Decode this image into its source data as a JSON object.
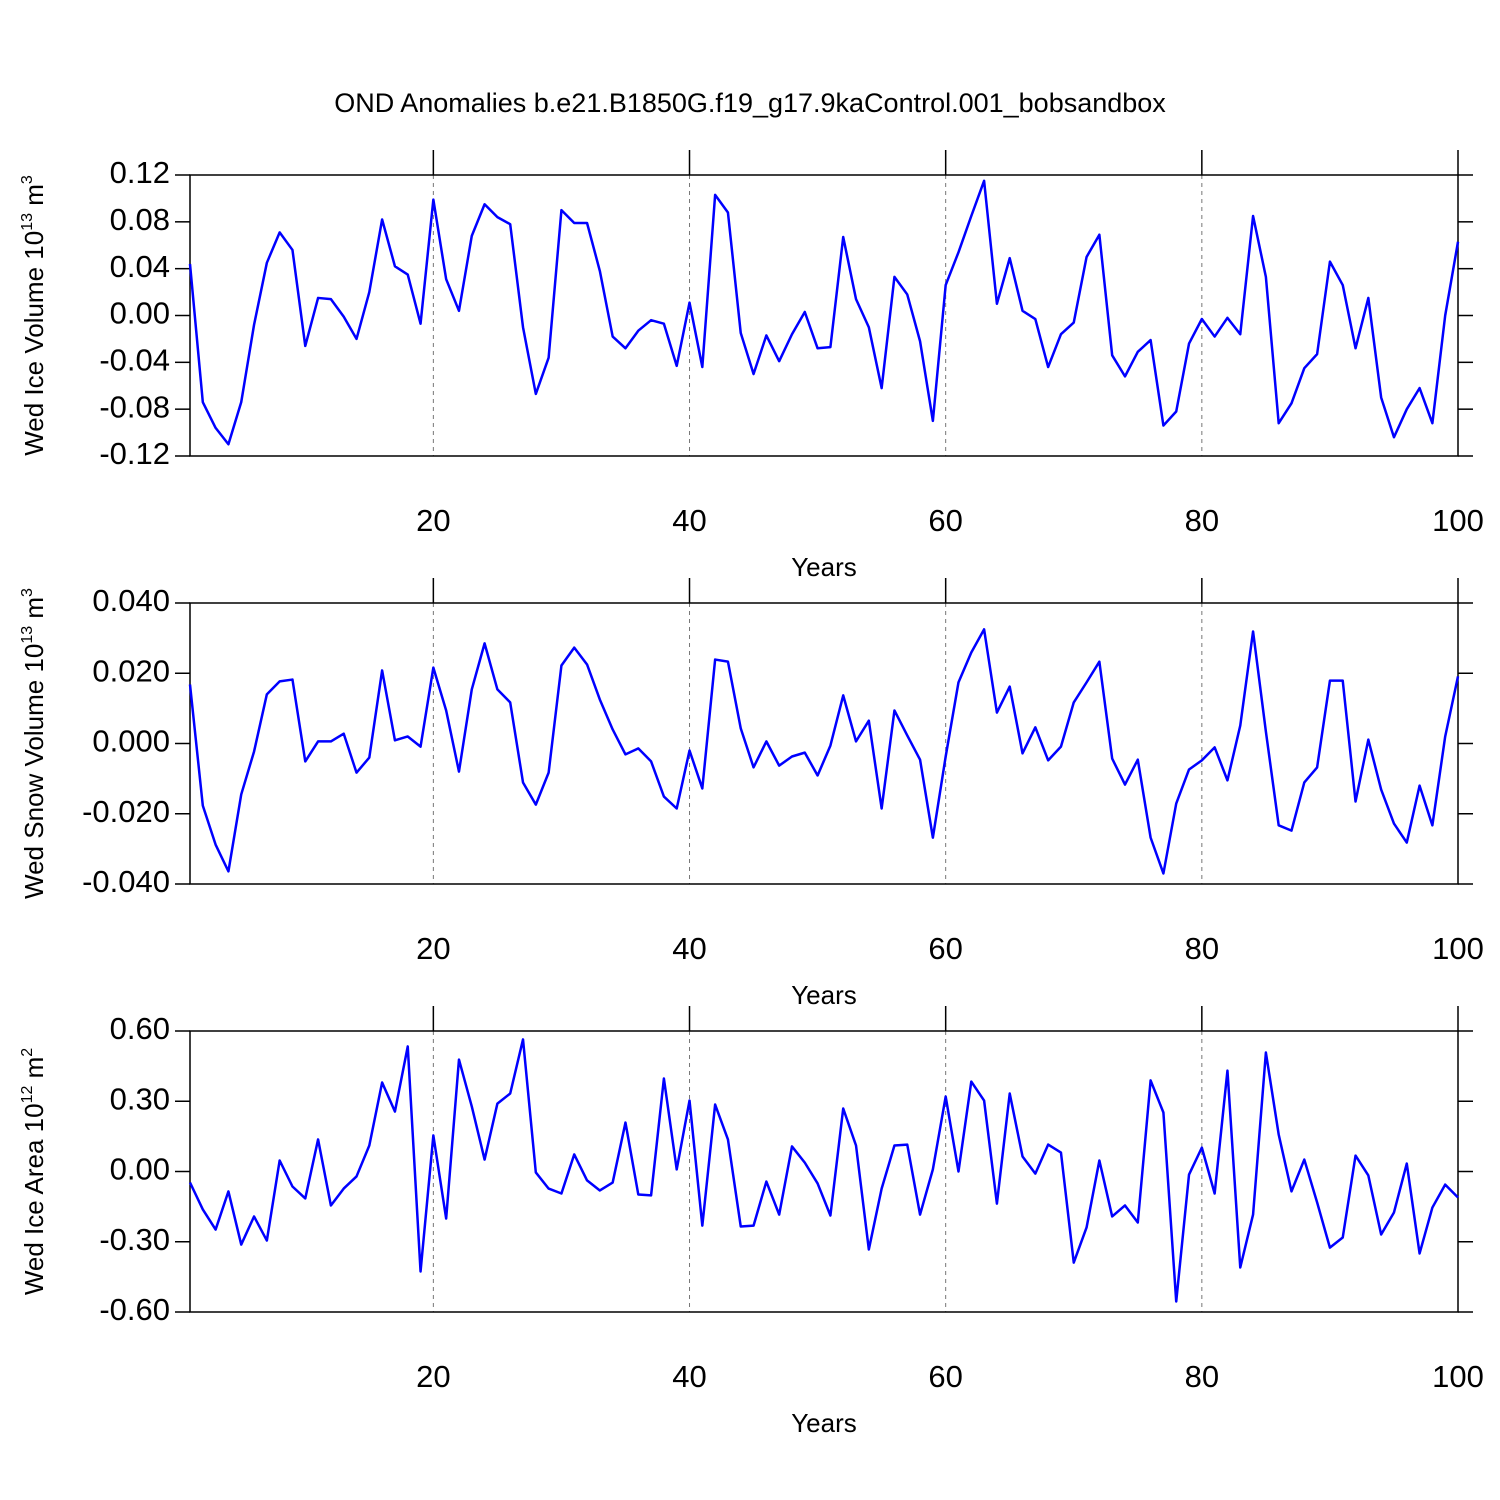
{
  "title": "OND Anomalies b.e21.B1850G.f19_g17.9kaControl.001_bobsandbox",
  "chart_data": [
    {
      "type": "line",
      "xlabel": "Years",
      "ylabel": [
        "Wed Ice Volume 10",
        "13",
        " m",
        "3"
      ],
      "color": "#0000ff",
      "grid": true,
      "xlim": [
        1,
        100
      ],
      "xticks": [
        20,
        40,
        60,
        80,
        100
      ],
      "ylim": [
        -0.12,
        0.12
      ],
      "yticks": [
        {
          "value": -0.12,
          "label": "-0.12"
        },
        {
          "value": -0.08,
          "label": "-0.08"
        },
        {
          "value": -0.04,
          "label": "-0.04"
        },
        {
          "value": 0,
          "label": "0.00"
        },
        {
          "value": 0.04,
          "label": "0.04"
        },
        {
          "value": 0.08,
          "label": "0.08"
        },
        {
          "value": 0.12,
          "label": "0.12"
        }
      ],
      "x": [
        1,
        2,
        3,
        4,
        5,
        6,
        7,
        8,
        9,
        10,
        11,
        12,
        13,
        14,
        15,
        16,
        17,
        18,
        19,
        20,
        21,
        22,
        23,
        24,
        25,
        26,
        27,
        28,
        29,
        30,
        31,
        32,
        33,
        34,
        35,
        36,
        37,
        38,
        39,
        40,
        41,
        42,
        43,
        44,
        45,
        46,
        47,
        48,
        49,
        50,
        51,
        52,
        53,
        54,
        55,
        56,
        57,
        58,
        59,
        60,
        61,
        62,
        63,
        64,
        65,
        66,
        67,
        68,
        69,
        70,
        71,
        72,
        73,
        74,
        75,
        76,
        77,
        78,
        79,
        80,
        81,
        82,
        83,
        84,
        85,
        86,
        87,
        88,
        89,
        90,
        91,
        92,
        93,
        94,
        95,
        96,
        97,
        98,
        99,
        100
      ],
      "values": [
        0.044,
        -0.074,
        -0.096,
        -0.11,
        -0.074,
        -0.008,
        0.045,
        0.071,
        0.056,
        -0.026,
        0.015,
        0.014,
        -0.001,
        -0.02,
        0.02,
        0.082,
        0.042,
        0.035,
        -0.007,
        0.099,
        0.031,
        0.004,
        0.068,
        0.095,
        0.084,
        0.078,
        -0.01,
        -0.067,
        -0.036,
        0.09,
        0.079,
        0.079,
        0.038,
        -0.018,
        -0.028,
        -0.013,
        -0.004,
        -0.007,
        -0.043,
        0.011,
        -0.044,
        0.103,
        0.088,
        -0.015,
        -0.05,
        -0.017,
        -0.039,
        -0.016,
        0.003,
        -0.028,
        -0.027,
        0.067,
        0.014,
        -0.01,
        -0.062,
        0.033,
        0.018,
        -0.022,
        -0.09,
        0.026,
        0.054,
        0.085,
        0.115,
        0.01,
        0.049,
        0.004,
        -0.003,
        -0.044,
        -0.016,
        -0.006,
        0.05,
        0.069,
        -0.034,
        -0.052,
        -0.031,
        -0.021,
        -0.094,
        -0.082,
        -0.024,
        -0.003,
        -0.018,
        -0.002,
        -0.016,
        0.085,
        0.033,
        -0.092,
        -0.075,
        -0.045,
        -0.033,
        0.046,
        0.026,
        -0.028,
        0.015,
        -0.07,
        -0.104,
        -0.08,
        -0.062,
        -0.092,
        0.0,
        0.063
      ]
    },
    {
      "type": "line",
      "xlabel": "Years",
      "ylabel": [
        "Wed Snow Volume 10",
        "13",
        " m",
        "3"
      ],
      "color": "#0000ff",
      "grid": true,
      "xlim": [
        1,
        100
      ],
      "xticks": [
        20,
        40,
        60,
        80,
        100
      ],
      "ylim": [
        -0.04,
        0.04
      ],
      "yticks": [
        {
          "value": -0.04,
          "label": "-0.040"
        },
        {
          "value": -0.02,
          "label": "-0.020"
        },
        {
          "value": 0,
          "label": "0.000"
        },
        {
          "value": 0.02,
          "label": "0.020"
        },
        {
          "value": 0.04,
          "label": "0.040"
        }
      ],
      "x": [
        1,
        2,
        3,
        4,
        5,
        6,
        7,
        8,
        9,
        10,
        11,
        12,
        13,
        14,
        15,
        16,
        17,
        18,
        19,
        20,
        21,
        22,
        23,
        24,
        25,
        26,
        27,
        28,
        29,
        30,
        31,
        32,
        33,
        34,
        35,
        36,
        37,
        38,
        39,
        40,
        41,
        42,
        43,
        44,
        45,
        46,
        47,
        48,
        49,
        50,
        51,
        52,
        53,
        54,
        55,
        56,
        57,
        58,
        59,
        60,
        61,
        62,
        63,
        64,
        65,
        66,
        67,
        68,
        69,
        70,
        71,
        72,
        73,
        74,
        75,
        76,
        77,
        78,
        79,
        80,
        81,
        82,
        83,
        84,
        85,
        86,
        87,
        88,
        89,
        90,
        91,
        92,
        93,
        94,
        95,
        96,
        97,
        98,
        99,
        100
      ],
      "values": [
        0.0168,
        -0.0177,
        -0.0288,
        -0.0364,
        -0.0145,
        -0.0023,
        0.014,
        0.0177,
        0.0182,
        -0.0051,
        0.0006,
        0.0006,
        0.0028,
        -0.0083,
        -0.004,
        0.0208,
        0.0009,
        0.002,
        -0.0009,
        0.0216,
        0.0094,
        -0.008,
        0.0154,
        0.0285,
        0.0154,
        0.0117,
        -0.0111,
        -0.0174,
        -0.0083,
        0.0222,
        0.0273,
        0.0225,
        0.0125,
        0.004,
        -0.0031,
        -0.0014,
        -0.0051,
        -0.0151,
        -0.0185,
        -0.002,
        -0.0128,
        0.0239,
        0.0233,
        0.0043,
        -0.0068,
        0.0006,
        -0.0063,
        -0.0037,
        -0.0026,
        -0.0091,
        -0.0006,
        0.0137,
        0.0006,
        0.0065,
        -0.0185,
        0.0094,
        0.0023,
        -0.0046,
        -0.0268,
        -0.0037,
        0.0174,
        0.0259,
        0.0325,
        0.0088,
        0.0162,
        -0.0028,
        0.0046,
        -0.0048,
        -0.0009,
        0.0117,
        0.0174,
        0.0233,
        -0.0043,
        -0.0117,
        -0.0046,
        -0.0268,
        -0.037,
        -0.0171,
        -0.0074,
        -0.0048,
        -0.0011,
        -0.0105,
        0.0051,
        0.0319,
        0.0034,
        -0.0233,
        -0.0248,
        -0.0111,
        -0.0068,
        0.0179,
        0.0179,
        -0.0165,
        0.0011,
        -0.0131,
        -0.0228,
        -0.0282,
        -0.012,
        -0.0233,
        0.002,
        0.0191
      ]
    },
    {
      "type": "line",
      "xlabel": "Years",
      "ylabel": [
        "Wed Ice Area 10",
        "12",
        " m",
        "2"
      ],
      "color": "#0000ff",
      "grid": true,
      "xlim": [
        1,
        100
      ],
      "xticks": [
        20,
        40,
        60,
        80,
        100
      ],
      "ylim": [
        -0.6,
        0.6
      ],
      "yticks": [
        {
          "value": -0.6,
          "label": "-0.60"
        },
        {
          "value": -0.3,
          "label": "-0.30"
        },
        {
          "value": 0,
          "label": "0.00"
        },
        {
          "value": 0.3,
          "label": "0.30"
        },
        {
          "value": 0.6,
          "label": "0.60"
        }
      ],
      "x": [
        1,
        2,
        3,
        4,
        5,
        6,
        7,
        8,
        9,
        10,
        11,
        12,
        13,
        14,
        15,
        16,
        17,
        18,
        19,
        20,
        21,
        22,
        23,
        24,
        25,
        26,
        27,
        28,
        29,
        30,
        31,
        32,
        33,
        34,
        35,
        36,
        37,
        38,
        39,
        40,
        41,
        42,
        43,
        44,
        45,
        46,
        47,
        48,
        49,
        50,
        51,
        52,
        53,
        54,
        55,
        56,
        57,
        58,
        59,
        60,
        61,
        62,
        63,
        64,
        65,
        66,
        67,
        68,
        69,
        70,
        71,
        72,
        73,
        74,
        75,
        76,
        77,
        78,
        79,
        80,
        81,
        82,
        83,
        84,
        85,
        86,
        87,
        88,
        89,
        90,
        91,
        92,
        93,
        94,
        95,
        96,
        97,
        98,
        99,
        100
      ],
      "values": [
        -0.047,
        -0.162,
        -0.248,
        -0.085,
        -0.312,
        -0.192,
        -0.295,
        0.047,
        -0.064,
        -0.115,
        0.137,
        -0.145,
        -0.073,
        -0.021,
        0.111,
        0.38,
        0.256,
        0.534,
        -0.427,
        0.154,
        -0.201,
        0.478,
        0.278,
        0.051,
        0.29,
        0.333,
        0.564,
        -0.004,
        -0.073,
        -0.094,
        0.073,
        -0.038,
        -0.081,
        -0.047,
        0.209,
        -0.098,
        -0.102,
        0.397,
        0.009,
        0.303,
        -0.231,
        0.286,
        0.137,
        -0.235,
        -0.231,
        -0.043,
        -0.184,
        0.107,
        0.038,
        -0.051,
        -0.188,
        0.269,
        0.111,
        -0.333,
        -0.073,
        0.111,
        0.115,
        -0.184,
        0.009,
        0.32,
        0.0,
        0.384,
        0.303,
        -0.137,
        0.333,
        0.064,
        -0.009,
        0.115,
        0.081,
        -0.389,
        -0.239,
        0.047,
        -0.192,
        -0.145,
        -0.218,
        0.389,
        0.252,
        -0.555,
        -0.013,
        0.102,
        -0.094,
        0.431,
        -0.41,
        -0.184,
        0.508,
        0.158,
        -0.085,
        0.051,
        -0.132,
        -0.325,
        -0.282,
        0.068,
        -0.017,
        -0.269,
        -0.175,
        0.034,
        -0.35,
        -0.154,
        -0.056,
        -0.111
      ]
    }
  ]
}
